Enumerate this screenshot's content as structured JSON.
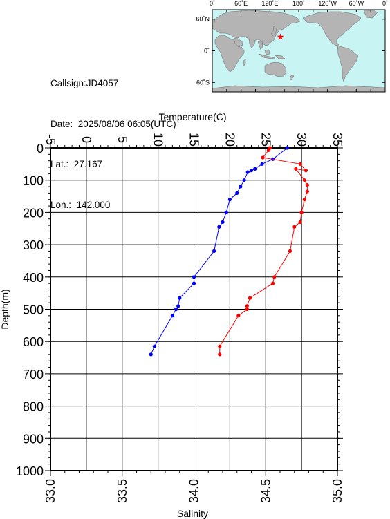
{
  "station": {
    "callsign_label": "Callsign:",
    "callsign": "JD4057",
    "date_label": "Date:",
    "date": "2025/08/06 06:05(UTC)",
    "lat_label": "Lat.:",
    "lat": "27.167",
    "lon_label": "Lon.:",
    "lon": "142.000"
  },
  "map": {
    "top_labels": [
      "0˚",
      "60˚E",
      "120˚E",
      "180˚",
      "120˚W",
      "60˚W",
      "0˚"
    ],
    "left_labels": [
      "60˚N",
      "0˚",
      "60˚S"
    ],
    "ocean_color": "#c8f4f4",
    "land_color": "#b4b4b4",
    "marker_color": "#ff0000",
    "marker_lon": 142.0,
    "marker_lat": 27.167
  },
  "chart_data": {
    "type": "line",
    "ylabel": "Depth(m)",
    "ylim": [
      0,
      1000
    ],
    "yticks": [
      0,
      100,
      200,
      300,
      400,
      500,
      600,
      700,
      800,
      900,
      1000
    ],
    "y_inverted": true,
    "grid": true,
    "top_axis": {
      "label": "Temperature(C)",
      "range": [
        -5,
        35
      ],
      "ticks": [
        -5,
        0,
        5,
        10,
        15,
        20,
        25,
        30,
        35
      ]
    },
    "bottom_axis": {
      "label": "Salinity",
      "range": [
        33.0,
        35.0
      ],
      "ticks": [
        "33.0",
        "33.5",
        "34.0",
        "34.5",
        "35.0"
      ]
    },
    "series": [
      {
        "axis": "top",
        "color": "#0000ff",
        "points": [
          [
            28.0,
            0
          ],
          [
            26.0,
            35
          ],
          [
            24.5,
            50
          ],
          [
            23.5,
            65
          ],
          [
            23.0,
            70
          ],
          [
            22.5,
            75
          ],
          [
            22.0,
            100
          ],
          [
            21.5,
            120
          ],
          [
            21.0,
            140
          ],
          [
            20.0,
            160
          ],
          [
            19.5,
            200
          ],
          [
            19.0,
            230
          ],
          [
            18.5,
            245
          ],
          [
            17.8,
            320
          ],
          [
            15.0,
            400
          ],
          [
            15.0,
            420
          ],
          [
            13.0,
            465
          ],
          [
            12.8,
            490
          ],
          [
            12.5,
            500
          ],
          [
            12.0,
            520
          ],
          [
            9.5,
            615
          ],
          [
            9.0,
            640
          ]
        ]
      },
      {
        "axis": "bottom",
        "color": "#ff0000",
        "points": [
          [
            34.53,
            0
          ],
          [
            34.52,
            7
          ],
          [
            34.48,
            30
          ],
          [
            34.74,
            50
          ],
          [
            34.78,
            70
          ],
          [
            34.71,
            65
          ],
          [
            34.77,
            100
          ],
          [
            34.79,
            115
          ],
          [
            34.79,
            135
          ],
          [
            34.77,
            160
          ],
          [
            34.75,
            200
          ],
          [
            34.74,
            230
          ],
          [
            34.7,
            245
          ],
          [
            34.67,
            320
          ],
          [
            34.56,
            400
          ],
          [
            34.55,
            420
          ],
          [
            34.39,
            465
          ],
          [
            34.37,
            490
          ],
          [
            34.37,
            500
          ],
          [
            34.31,
            520
          ],
          [
            34.18,
            615
          ],
          [
            34.18,
            640
          ]
        ]
      }
    ]
  }
}
